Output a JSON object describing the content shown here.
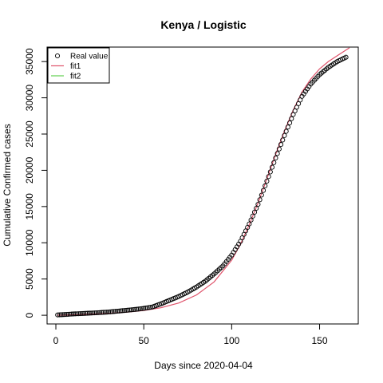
{
  "chart_data": {
    "type": "scatter",
    "title": "Kenya / Logistic",
    "xlabel": "Days since 2020-04-04",
    "ylabel": "Cumulative Confirmed cases",
    "xlim": [
      -5,
      172
    ],
    "ylim": [
      -1200,
      37000
    ],
    "x_ticks": [
      0,
      50,
      100,
      150
    ],
    "y_ticks": [
      0,
      5000,
      10000,
      15000,
      20000,
      25000,
      30000,
      35000
    ],
    "grid": false,
    "legend_position": "top-left",
    "legend": [
      {
        "label": "Real value",
        "marker": "open-circle",
        "color": "#000000"
      },
      {
        "label": "fit1",
        "marker": "line",
        "color": "#DF536B"
      },
      {
        "label": "fit2",
        "marker": "line",
        "color": "#61D04F"
      }
    ],
    "series": [
      {
        "name": "Real value",
        "style": "open-circle",
        "color": "#000000",
        "x": [
          1,
          5,
          10,
          15,
          20,
          25,
          30,
          35,
          40,
          45,
          50,
          55,
          60,
          65,
          70,
          75,
          80,
          85,
          90,
          95,
          100,
          105,
          110,
          115,
          120,
          125,
          130,
          135,
          140,
          145,
          150,
          155,
          160,
          165
        ],
        "y": [
          50,
          100,
          180,
          240,
          300,
          370,
          450,
          560,
          680,
          800,
          950,
          1150,
          1600,
          2100,
          2600,
          3200,
          3900,
          4700,
          5700,
          6800,
          8300,
          10200,
          12600,
          15300,
          18500,
          21700,
          24800,
          27700,
          30200,
          31900,
          33200,
          34200,
          35000,
          35600
        ]
      },
      {
        "name": "fit1",
        "style": "line",
        "color": "#DF536B",
        "x": [
          1,
          10,
          20,
          30,
          40,
          50,
          60,
          70,
          80,
          90,
          100,
          105,
          110,
          115,
          120,
          125,
          130,
          135,
          140,
          145,
          150,
          155,
          160,
          167
        ],
        "y": [
          0,
          60,
          150,
          260,
          420,
          650,
          1050,
          1700,
          2800,
          4600,
          7600,
          9800,
          12500,
          15500,
          18800,
          22200,
          25400,
          28300,
          30800,
          32600,
          34000,
          35000,
          35800,
          36900
        ]
      },
      {
        "name": "fit2",
        "style": "line",
        "color": "#61D04F",
        "x": [],
        "y": []
      }
    ]
  }
}
